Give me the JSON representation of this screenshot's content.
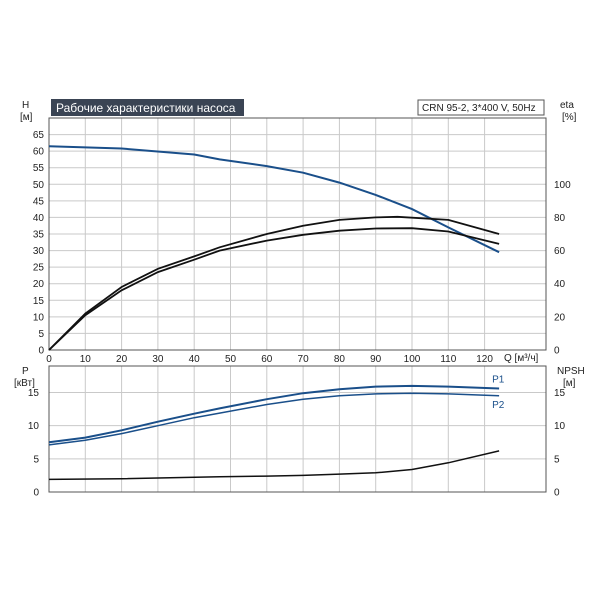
{
  "title": "Рабочие характеристики насоса",
  "pump_label": "CRN 95-2, 3*400 V, 50Hz",
  "colors": {
    "blue": "#1a4f8a",
    "black": "#111111",
    "title_bg": "#3a4454",
    "grid": "#c9c9c9"
  },
  "top_axes": {
    "left_label_line1": "H",
    "left_label_line2": "[м]",
    "right_label_line1": "eta",
    "right_label_line2": "[%]",
    "x_label": "Q [м³/ч]"
  },
  "bottom_axes": {
    "left_label_line1": "P",
    "left_label_line2": "[кВт]",
    "right_label_line1": "NPSH",
    "right_label_line2": "[м]"
  },
  "chart_data": [
    {
      "type": "line",
      "panel": "head-efficiency",
      "x_ticks": [
        "0",
        "10",
        "20",
        "30",
        "40",
        "50",
        "60",
        "70",
        "80",
        "90",
        "100",
        "110",
        "120"
      ],
      "y_ticks": [
        "0",
        "5",
        "10",
        "15",
        "20",
        "25",
        "30",
        "35",
        "40",
        "45",
        "50",
        "55",
        "60",
        "65"
      ],
      "y2_ticks": [
        "0",
        "20",
        "40",
        "60",
        "80",
        "100"
      ],
      "xlim": [
        0,
        135
      ],
      "ylim": [
        0,
        70
      ],
      "y2lim": [
        0,
        140
      ],
      "grid": true,
      "series": [
        {
          "role": "head",
          "axis": "left",
          "color": "#1a4f8a",
          "x": [
            0,
            20,
            40,
            47,
            60,
            70,
            80,
            90,
            100,
            110,
            124
          ],
          "y": [
            61.5,
            60.8,
            59.0,
            57.5,
            55.5,
            53.5,
            50.5,
            46.8,
            42.5,
            37.0,
            29.5
          ]
        },
        {
          "role": "eta-upper",
          "axis": "right",
          "color": "#111111",
          "x": [
            0,
            10,
            20,
            30,
            40,
            47,
            60,
            70,
            80,
            90,
            96,
            110,
            124
          ],
          "y": [
            0,
            22,
            38,
            49,
            56.5,
            62,
            70,
            75,
            78.5,
            80,
            80.4,
            78.5,
            70
          ]
        },
        {
          "role": "eta-lower",
          "axis": "right",
          "color": "#111111",
          "x": [
            0,
            10,
            20,
            30,
            40,
            47,
            60,
            70,
            80,
            90,
            100,
            110,
            124
          ],
          "y": [
            0,
            21,
            36,
            47,
            54.5,
            60,
            66,
            69.5,
            72,
            73.3,
            73.5,
            71.5,
            64
          ]
        }
      ]
    },
    {
      "type": "line",
      "panel": "power-npsh",
      "y_ticks": [
        "0",
        "5",
        "10",
        "15"
      ],
      "y2_ticks": [
        "0",
        "5",
        "10",
        "15"
      ],
      "xlim": [
        0,
        135
      ],
      "ylim": [
        0,
        19
      ],
      "y2lim": [
        0,
        19
      ],
      "grid": true,
      "series": [
        {
          "name": "P1",
          "axis": "left",
          "color": "#1a4f8a",
          "x": [
            0,
            10,
            20,
            30,
            40,
            47,
            60,
            70,
            80,
            90,
            100,
            110,
            124
          ],
          "y": [
            7.5,
            8.2,
            9.3,
            10.6,
            11.8,
            12.6,
            14.0,
            14.9,
            15.5,
            15.9,
            16.0,
            15.9,
            15.6
          ]
        },
        {
          "name": "P2",
          "axis": "left",
          "color": "#1a4f8a",
          "x": [
            0,
            10,
            20,
            30,
            40,
            47,
            60,
            70,
            80,
            90,
            100,
            110,
            124
          ],
          "y": [
            7.1,
            7.8,
            8.8,
            10.0,
            11.2,
            11.9,
            13.2,
            14.0,
            14.5,
            14.8,
            14.9,
            14.8,
            14.5
          ]
        },
        {
          "role": "npsh",
          "axis": "right",
          "color": "#111111",
          "x": [
            0,
            20,
            47,
            60,
            70,
            80,
            90,
            100,
            110,
            124
          ],
          "y": [
            1.9,
            2.0,
            2.3,
            2.4,
            2.5,
            2.7,
            2.9,
            3.4,
            4.4,
            6.2
          ]
        }
      ]
    }
  ]
}
